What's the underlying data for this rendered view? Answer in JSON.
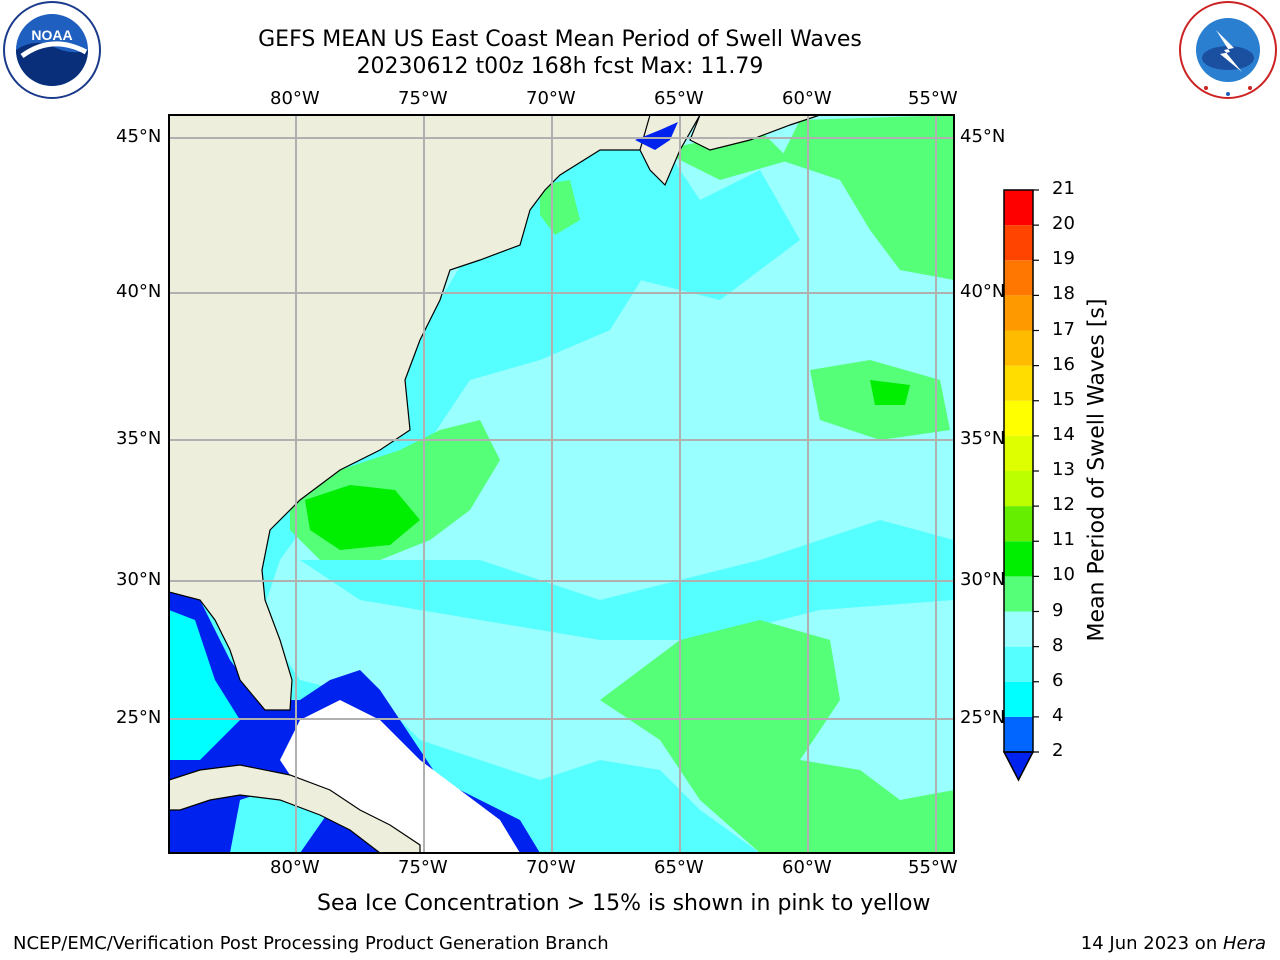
{
  "title": {
    "line1": "GEFS MEAN US East Coast Mean Period of Swell Waves",
    "line2": "20230612 t00z 168h fcst   Max: 11.79"
  },
  "logos": {
    "left": "noaa-logo",
    "left_text": "NOAA",
    "right": "nws-logo",
    "right_text": "NATIONAL WEATHER SERVICE"
  },
  "map": {
    "lon_labels": [
      "80°W",
      "75°W",
      "70°W",
      "65°W",
      "60°W",
      "55°W"
    ],
    "lat_labels": [
      "45°N",
      "40°N",
      "35°N",
      "30°N",
      "25°N"
    ],
    "colors": {
      "land": "#eeeedd",
      "grid": "#b0b0b0",
      "ocean_base": "#99ffff"
    }
  },
  "colorbar": {
    "label": "Mean Period of Swell Waves [s]",
    "ticks": [
      "2",
      "4",
      "6",
      "8",
      "9",
      "10",
      "11",
      "12",
      "13",
      "14",
      "15",
      "16",
      "17",
      "18",
      "19",
      "20",
      "21"
    ],
    "colors": [
      "#0066ff",
      "#00ffff",
      "#55ffff",
      "#99ffff",
      "#55ff77",
      "#00ee00",
      "#66ee00",
      "#bbff00",
      "#ddff00",
      "#ffff00",
      "#ffdd00",
      "#ffbb00",
      "#ff9900",
      "#ff7700",
      "#ff4400",
      "#ff0000"
    ],
    "under_color": "#0022ee"
  },
  "ice_note": "Sea Ice Concentration > 15% is shown in pink to yellow",
  "footer": {
    "left": "NCEP/EMC/Verification Post Processing Product Generation Branch",
    "right_prefix": "14 Jun 2023 on ",
    "right_machine": "Hera"
  }
}
